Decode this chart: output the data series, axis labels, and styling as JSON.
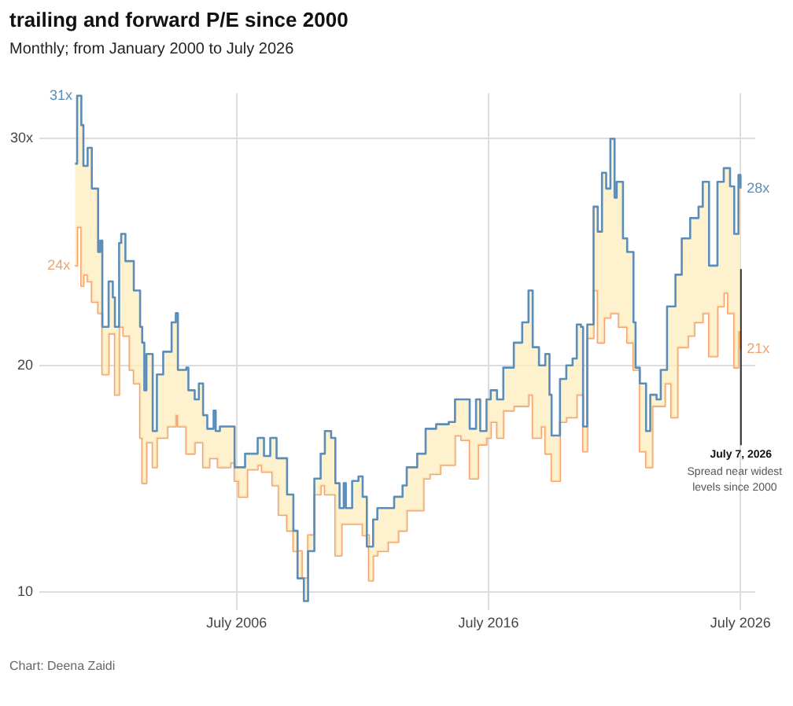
{
  "chart_data": {
    "type": "step",
    "title": "trailing and forward P/E since 2000",
    "subtitle": "Monthly; from January 2000 to July 2026",
    "xlim": [
      "1998-09",
      "2027-02"
    ],
    "xticks": [
      {
        "value": "2006-07",
        "label": "July 2006"
      },
      {
        "value": "2016-07",
        "label": "July 2016"
      },
      {
        "value": "2026-07",
        "label": "July 2026"
      }
    ],
    "ylim": [
      9.2,
      32
    ],
    "yticks": [
      10,
      20,
      {
        "value": 30,
        "label": "30x"
      }
    ],
    "grid": true,
    "series": [
      {
        "color": "#5b8db8",
        "x": [
          "2000-02",
          "2000-03",
          "2000-05",
          "2000-06",
          "2000-08",
          "2000-10",
          "2001-01",
          "2001-02",
          "2001-03",
          "2001-06",
          "2001-08",
          "2001-09",
          "2001-11",
          "2001-12",
          "2002-02",
          "2002-06",
          "2002-09",
          "2002-10",
          "2002-11",
          "2002-12",
          "2003-03",
          "2003-05",
          "2003-08",
          "2003-12",
          "2004-02",
          "2004-03",
          "2004-07",
          "2004-08",
          "2004-11",
          "2005-01",
          "2005-03",
          "2005-05",
          "2005-08",
          "2005-09",
          "2005-11",
          "2006-04",
          "2006-06",
          "2006-11",
          "2007-05",
          "2007-08",
          "2007-11",
          "2008-02",
          "2008-05",
          "2008-07",
          "2008-10",
          "2008-12",
          "2009-03",
          "2009-05",
          "2009-08",
          "2009-11",
          "2010-01",
          "2010-04",
          "2010-06",
          "2010-08",
          "2010-10",
          "2010-11",
          "2011-02",
          "2011-05",
          "2011-07",
          "2011-09",
          "2011-12",
          "2012-02",
          "2012-06",
          "2012-10",
          "2013-02",
          "2013-04",
          "2013-09",
          "2014-01",
          "2014-06",
          "2014-12",
          "2015-03",
          "2015-08",
          "2015-10",
          "2016-01",
          "2016-03",
          "2016-06",
          "2016-08",
          "2016-11",
          "2017-02",
          "2017-07",
          "2017-11",
          "2018-02",
          "2018-04",
          "2018-07",
          "2018-10",
          "2018-12",
          "2019-01",
          "2019-05",
          "2019-08",
          "2019-11",
          "2020-01",
          "2020-03",
          "2020-04",
          "2020-06",
          "2020-09",
          "2020-11",
          "2021-01",
          "2021-03",
          "2021-05",
          "2021-07",
          "2021-08",
          "2021-11",
          "2022-01",
          "2022-04",
          "2022-05",
          "2022-07",
          "2022-10",
          "2022-12",
          "2023-03",
          "2023-05",
          "2023-08",
          "2023-12",
          "2024-03",
          "2024-07",
          "2024-11",
          "2025-01",
          "2025-04",
          "2025-08",
          "2025-11",
          "2026-02",
          "2026-04",
          "2026-06",
          "2026-07"
        ],
        "values": [
          28.9,
          31.9,
          30.6,
          28.8,
          29.6,
          27.8,
          25.0,
          25.5,
          21.7,
          23.7,
          23.0,
          21.7,
          25.4,
          25.8,
          24.6,
          23.3,
          21.7,
          21.0,
          18.9,
          20.5,
          17.1,
          19.6,
          20.6,
          21.9,
          22.3,
          19.8,
          19.9,
          18.9,
          18.5,
          19.2,
          17.8,
          17.2,
          18.0,
          17.1,
          17.3,
          17.3,
          15.5,
          16.1,
          16.8,
          16.0,
          16.8,
          15.9,
          15.9,
          14.3,
          12.7,
          10.6,
          9.6,
          11.8,
          15.0,
          16.1,
          17.1,
          16.8,
          14.8,
          13.7,
          14.8,
          13.7,
          14.9,
          15.1,
          14.2,
          12.0,
          13.2,
          13.7,
          13.7,
          14.2,
          14.7,
          15.5,
          16.1,
          17.2,
          17.4,
          17.5,
          18.5,
          18.5,
          17.2,
          18.5,
          17.1,
          18.5,
          18.9,
          18.5,
          19.9,
          21.0,
          21.9,
          23.3,
          20.8,
          20.0,
          20.5,
          18.7,
          16.9,
          19.4,
          20.0,
          20.3,
          21.8,
          21.7,
          17.3,
          21.8,
          27.0,
          25.9,
          28.5,
          27.8,
          30.0,
          27.4,
          28.1,
          25.6,
          25.0,
          21.9,
          19.9,
          19.2,
          17.1,
          18.7,
          18.5,
          19.8,
          22.6,
          24.0,
          25.6,
          26.5,
          27.0,
          28.1,
          24.4,
          28.1,
          28.7,
          27.9,
          25.8,
          28.4,
          27.8
        ]
      },
      {
        "color": "#f0a36c",
        "x": [
          "2000-02",
          "2000-03",
          "2000-05",
          "2000-06",
          "2000-08",
          "2000-10",
          "2001-01",
          "2001-03",
          "2001-06",
          "2001-09",
          "2001-11",
          "2002-01",
          "2002-04",
          "2002-06",
          "2002-09",
          "2002-10",
          "2002-12",
          "2003-03",
          "2003-05",
          "2003-10",
          "2004-02",
          "2004-03",
          "2004-07",
          "2004-11",
          "2005-03",
          "2005-06",
          "2005-10",
          "2006-04",
          "2006-06",
          "2006-08",
          "2006-12",
          "2007-05",
          "2007-07",
          "2007-12",
          "2008-03",
          "2008-07",
          "2008-10",
          "2009-02",
          "2009-05",
          "2009-08",
          "2009-11",
          "2010-01",
          "2010-06",
          "2010-09",
          "2011-02",
          "2011-05",
          "2011-07",
          "2011-10",
          "2011-12",
          "2012-02",
          "2012-07",
          "2012-12",
          "2013-04",
          "2013-08",
          "2013-12",
          "2014-03",
          "2014-08",
          "2015-03",
          "2015-06",
          "2015-10",
          "2016-02",
          "2016-06",
          "2016-08",
          "2016-11",
          "2017-02",
          "2017-07",
          "2018-02",
          "2018-04",
          "2018-08",
          "2018-10",
          "2019-01",
          "2019-05",
          "2019-08",
          "2020-01",
          "2020-04",
          "2020-06",
          "2020-09",
          "2020-11",
          "2021-02",
          "2021-05",
          "2021-09",
          "2022-01",
          "2022-04",
          "2022-07",
          "2022-10",
          "2023-01",
          "2023-07",
          "2023-10",
          "2024-01",
          "2024-06",
          "2024-09",
          "2025-01",
          "2025-04",
          "2025-08",
          "2025-11",
          "2026-01",
          "2026-04",
          "2026-06",
          "2026-07"
        ],
        "values": [
          24.4,
          26.1,
          23.5,
          24.0,
          23.7,
          22.8,
          22.3,
          19.6,
          21.4,
          18.7,
          21.7,
          21.3,
          19.8,
          19.2,
          16.8,
          14.8,
          16.6,
          15.5,
          16.8,
          17.3,
          17.8,
          17.3,
          16.1,
          16.6,
          15.5,
          15.9,
          15.5,
          15.7,
          14.9,
          14.2,
          15.4,
          15.6,
          15.3,
          14.7,
          13.4,
          12.7,
          11.8,
          10.6,
          12.5,
          14.3,
          14.7,
          14.3,
          11.6,
          13.0,
          13.0,
          13.0,
          12.5,
          10.5,
          11.6,
          11.8,
          12.2,
          12.7,
          13.6,
          13.6,
          15.0,
          15.2,
          15.6,
          16.9,
          16.7,
          15.0,
          16.5,
          16.8,
          17.5,
          16.8,
          18.0,
          18.2,
          18.7,
          16.8,
          17.3,
          16.1,
          14.9,
          17.5,
          17.7,
          18.7,
          16.2,
          21.2,
          23.3,
          21.0,
          22.1,
          22.3,
          21.7,
          21.0,
          19.8,
          16.2,
          15.5,
          18.2,
          19.2,
          17.7,
          20.8,
          21.3,
          21.9,
          22.3,
          20.4,
          22.6,
          23.2,
          22.3,
          19.9,
          21.5,
          20.7
        ]
      }
    ],
    "ref_lines": [
      {
        "axis": "x",
        "value": "2026-07-07",
        "label": "July 7, 2026\nSpread near widest levels since 2000"
      }
    ],
    "annotations": [
      {
        "text": "31x",
        "x": "2000-03",
        "y": 31.9
      },
      {
        "text": "24x",
        "x": "2000-02",
        "y": 24.4
      },
      {
        "text": "28x",
        "x": "2026-07",
        "y": 27.8
      },
      {
        "text": "21x",
        "x": "2026-07",
        "y": 20.7
      },
      "Chart: Deena Zaidi"
    ]
  }
}
